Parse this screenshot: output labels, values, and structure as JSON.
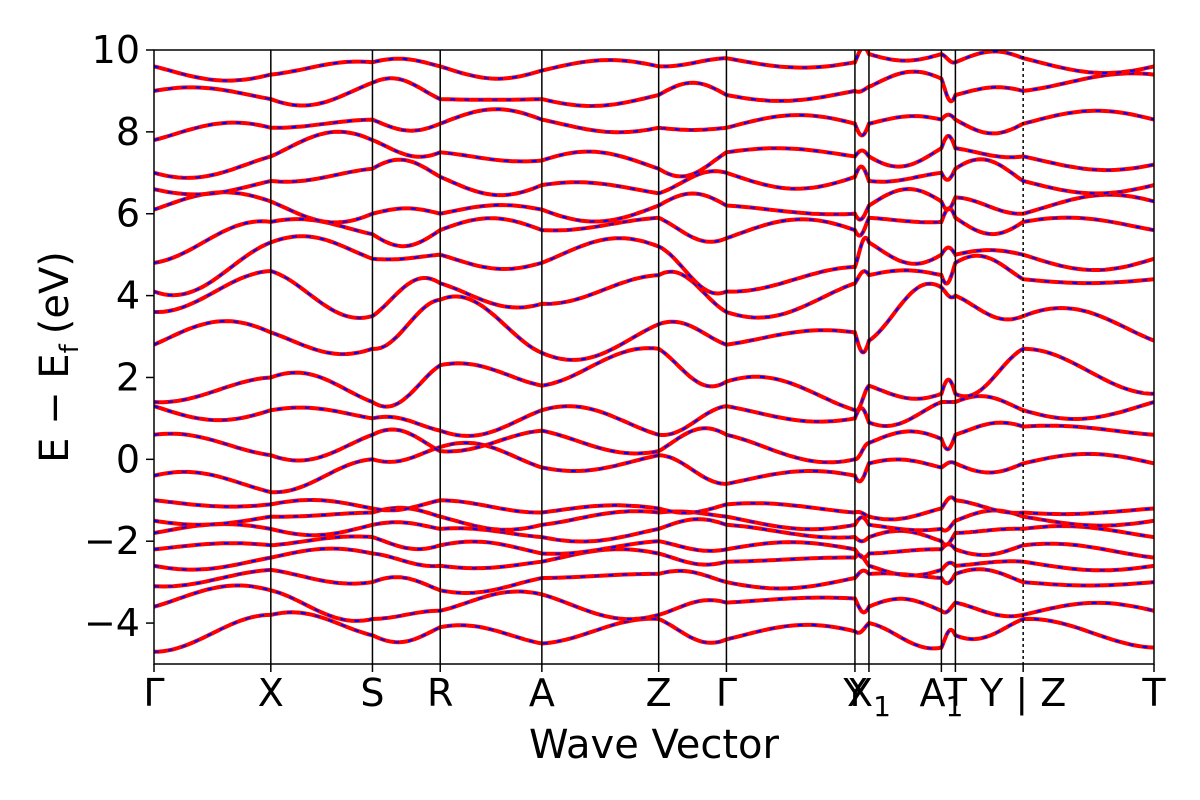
{
  "chart_data": {
    "type": "line",
    "title": "",
    "xlabel": "Wave Vector",
    "ylabel": "E − E",
    "ylabel_sub": "f",
    "ylabel_unit": "(eV)",
    "ylim": [
      -5,
      10
    ],
    "yticks": [
      "10",
      "8",
      "6",
      "4",
      "2",
      "0",
      "−2",
      "−4"
    ],
    "ytick_values": [
      10,
      8,
      6,
      4,
      2,
      0,
      -2,
      -4
    ],
    "grid": false,
    "legend": "none",
    "series_colors": {
      "band": "#ff0000",
      "overlay": "#0000ff"
    },
    "kpath": [
      {
        "label": "Γ",
        "k": 0.0
      },
      {
        "label": "X",
        "k": 1.0
      },
      {
        "label": "S",
        "k": 1.87
      },
      {
        "label": "R",
        "k": 2.45
      },
      {
        "label": "A",
        "k": 3.32
      },
      {
        "label": "Z",
        "k": 4.32
      },
      {
        "label": "Γ",
        "k": 4.9
      },
      {
        "label": "Y",
        "k": 6.0
      },
      {
        "label": "X",
        "sub": "1",
        "k": 6.12
      },
      {
        "label": "A",
        "sub": "1",
        "k": 6.74
      },
      {
        "label": "T",
        "k": 6.86
      },
      {
        "label": "Y | Z",
        "k": 7.44,
        "dashed": true
      },
      {
        "label": "T",
        "k": 8.56
      }
    ],
    "x_range": [
      0.0,
      8.56
    ],
    "series": [
      {
        "name": "",
        "anchors": [
          -4.7,
          -3.8,
          -4.3,
          -4.1,
          -4.5,
          -3.9,
          -4.4,
          -4.2,
          -4.0,
          -4.6,
          -4.3,
          -3.9,
          -4.6
        ],
        "amp": 0.25
      },
      {
        "name": "",
        "anchors": [
          -3.6,
          -3.2,
          -3.9,
          -3.7,
          -3.3,
          -3.8,
          -3.5,
          -3.4,
          -3.6,
          -3.7,
          -3.5,
          -3.8,
          -3.7
        ],
        "amp": 0.25
      },
      {
        "name": "",
        "anchors": [
          -3.1,
          -2.7,
          -3.0,
          -3.2,
          -2.9,
          -2.8,
          -3.0,
          -2.9,
          -2.8,
          -2.9,
          -2.8,
          -3.0,
          -3.0
        ],
        "amp": 0.2
      },
      {
        "name": "",
        "anchors": [
          -2.6,
          -2.4,
          -2.3,
          -2.6,
          -2.5,
          -2.3,
          -2.5,
          -2.4,
          -2.6,
          -2.7,
          -2.6,
          -2.5,
          -2.6
        ],
        "amp": 0.18
      },
      {
        "name": "",
        "anchors": [
          -2.2,
          -2.1,
          -1.9,
          -2.1,
          -2.3,
          -2.0,
          -2.2,
          -2.2,
          -2.3,
          -2.2,
          -2.2,
          -2.1,
          -2.4
        ],
        "amp": 0.18
      },
      {
        "name": "",
        "anchors": [
          -1.8,
          -1.7,
          -1.6,
          -1.7,
          -1.9,
          -1.7,
          -1.6,
          -1.9,
          -1.9,
          -2.0,
          -1.8,
          -1.7,
          -1.9
        ],
        "amp": 0.2
      },
      {
        "name": "",
        "anchors": [
          -1.5,
          -1.4,
          -1.3,
          -1.4,
          -1.6,
          -1.3,
          -1.4,
          -1.6,
          -1.6,
          -1.7,
          -1.5,
          -1.4,
          -1.5
        ],
        "amp": 0.2
      },
      {
        "name": "",
        "anchors": [
          -1.0,
          -1.1,
          -1.2,
          -1.0,
          -1.3,
          -1.2,
          -1.1,
          -1.3,
          -1.4,
          -1.2,
          -1.0,
          -1.3,
          -1.2
        ],
        "amp": 0.15
      },
      {
        "name": "",
        "anchors": [
          -0.4,
          -0.8,
          0.0,
          0.3,
          -0.2,
          0.1,
          -0.6,
          -0.4,
          -0.1,
          -0.2,
          -0.1,
          -0.1,
          -0.1
        ],
        "amp": 0.25
      },
      {
        "name": "",
        "anchors": [
          0.6,
          0.1,
          0.6,
          0.2,
          0.7,
          0.2,
          0.6,
          0.0,
          0.4,
          0.5,
          0.6,
          0.8,
          0.6
        ],
        "amp": 0.3
      },
      {
        "name": "",
        "anchors": [
          1.3,
          1.2,
          1.0,
          0.7,
          1.2,
          0.6,
          1.3,
          1.0,
          0.9,
          1.4,
          1.4,
          1.2,
          1.4
        ],
        "amp": 0.3
      },
      {
        "name": "",
        "anchors": [
          1.4,
          2.0,
          1.4,
          2.3,
          1.8,
          2.7,
          1.9,
          1.2,
          1.8,
          1.6,
          1.6,
          2.7,
          1.6
        ],
        "amp": 0.35
      },
      {
        "name": "",
        "anchors": [
          2.8,
          3.1,
          2.7,
          3.9,
          2.6,
          3.3,
          2.8,
          3.1,
          2.9,
          4.2,
          4.0,
          3.5,
          2.9
        ],
        "amp": 0.4
      },
      {
        "name": "",
        "anchors": [
          3.6,
          4.6,
          3.5,
          4.3,
          3.8,
          4.5,
          3.6,
          4.3,
          4.5,
          4.5,
          4.8,
          4.4,
          4.4
        ],
        "amp": 0.35
      },
      {
        "name": "",
        "anchors": [
          4.1,
          5.3,
          4.9,
          5.0,
          4.8,
          5.2,
          4.1,
          4.7,
          5.3,
          5.0,
          5.0,
          5.0,
          4.9
        ],
        "amp": 0.35
      },
      {
        "name": "",
        "anchors": [
          4.8,
          5.8,
          5.5,
          5.6,
          5.6,
          5.9,
          5.4,
          5.6,
          5.9,
          5.8,
          5.9,
          5.8,
          5.6
        ],
        "amp": 0.35
      },
      {
        "name": "",
        "anchors": [
          6.1,
          6.3,
          6.0,
          6.0,
          6.1,
          6.2,
          6.2,
          6.0,
          6.2,
          6.3,
          6.4,
          6.0,
          6.3
        ],
        "amp": 0.35
      },
      {
        "name": "",
        "anchors": [
          6.6,
          6.8,
          7.1,
          6.9,
          6.7,
          6.5,
          7.0,
          6.9,
          6.8,
          7.0,
          7.1,
          6.8,
          6.7
        ],
        "amp": 0.35
      },
      {
        "name": "",
        "anchors": [
          7.0,
          7.4,
          7.8,
          7.5,
          7.3,
          7.1,
          7.5,
          7.4,
          7.4,
          7.6,
          7.6,
          7.4,
          7.2
        ],
        "amp": 0.35
      },
      {
        "name": "",
        "anchors": [
          7.8,
          8.1,
          8.3,
          8.2,
          8.3,
          8.1,
          8.1,
          8.2,
          8.2,
          8.3,
          8.3,
          8.2,
          8.3
        ],
        "amp": 0.3
      },
      {
        "name": "",
        "anchors": [
          9.0,
          8.8,
          9.2,
          8.8,
          8.8,
          8.9,
          8.9,
          9.0,
          9.1,
          9.3,
          8.9,
          9.0,
          9.4
        ],
        "amp": 0.3
      },
      {
        "name": "",
        "anchors": [
          9.6,
          9.4,
          9.7,
          9.6,
          9.5,
          9.6,
          9.8,
          9.7,
          9.9,
          9.9,
          9.7,
          9.8,
          9.6
        ],
        "amp": 0.25
      }
    ]
  }
}
